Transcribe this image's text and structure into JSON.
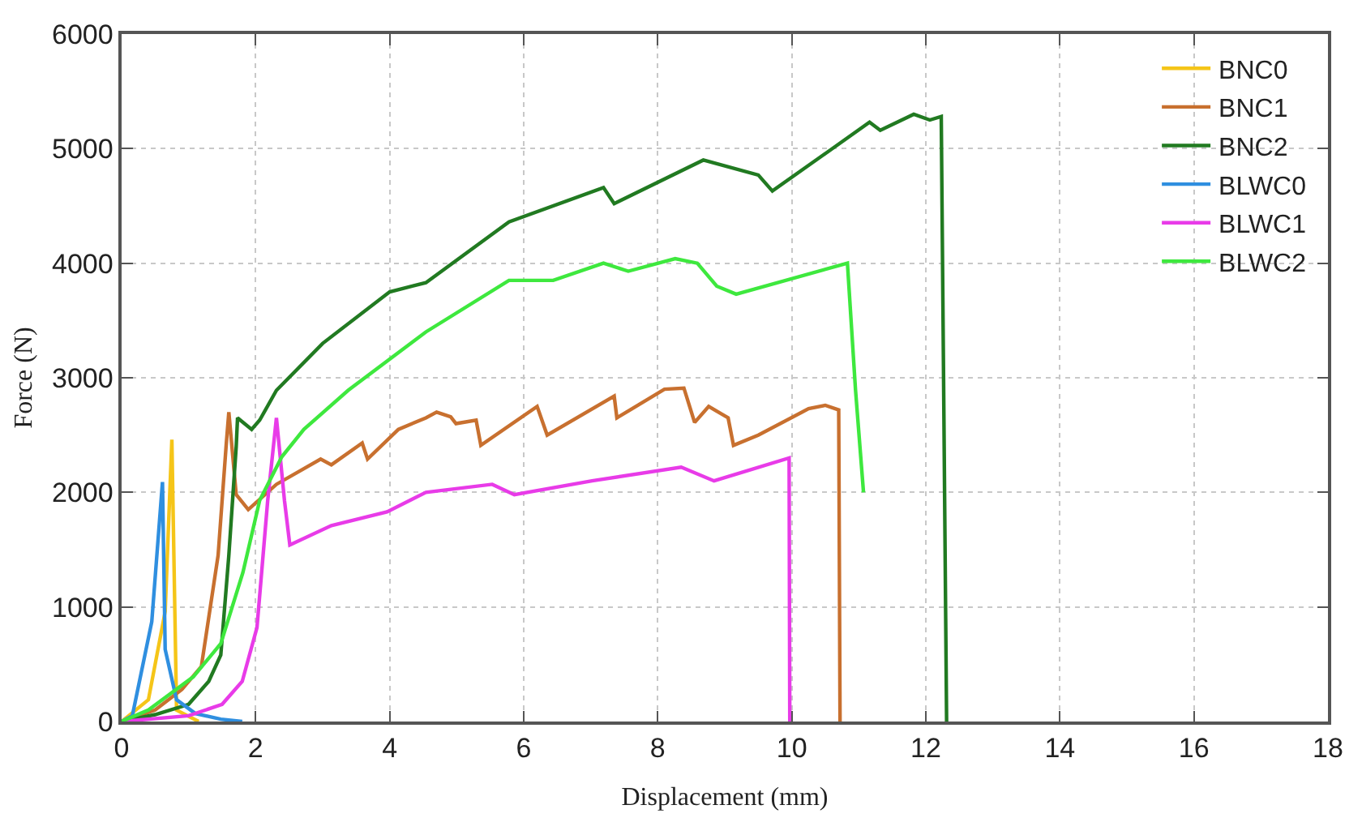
{
  "chart_data": {
    "type": "line",
    "xlabel": "Displacement (mm)",
    "ylabel": "Force (N)",
    "xlim": [
      0,
      18
    ],
    "xticks": [
      0,
      2,
      4,
      6,
      8,
      10,
      12,
      14,
      16,
      18
    ],
    "ylim": [
      0,
      6000
    ],
    "yticks": [
      0,
      1000,
      2000,
      3000,
      4000,
      5000,
      6000
    ],
    "grid": true,
    "legend": "top right",
    "marker": "none",
    "line_style": "solid",
    "series": [
      {
        "name": "BNC0",
        "color": "#f5c518",
        "x": [
          0,
          0.4,
          0.65,
          0.75,
          0.82,
          1.15
        ],
        "values": [
          0,
          190,
          960,
          2460,
          100,
          0
        ]
      },
      {
        "name": "BNC1",
        "color": "#c8702f",
        "x": [
          0,
          0.5,
          0.9,
          1.19,
          1.44,
          1.56,
          1.6,
          1.71,
          1.89,
          2.31,
          2.97,
          3.13,
          3.59,
          3.67,
          4.13,
          4.54,
          4.7,
          4.91,
          4.99,
          5.29,
          5.36,
          6.2,
          6.35,
          7.35,
          7.39,
          8.1,
          8.39,
          8.55,
          8.76,
          9.05,
          9.13,
          9.5,
          10.25,
          10.5,
          10.7,
          10.72
        ],
        "values": [
          0,
          100,
          280,
          480,
          1450,
          2410,
          2700,
          1980,
          1850,
          2070,
          2290,
          2240,
          2430,
          2290,
          2550,
          2650,
          2700,
          2660,
          2600,
          2630,
          2410,
          2750,
          2500,
          2840,
          2650,
          2900,
          2910,
          2610,
          2750,
          2650,
          2410,
          2500,
          2730,
          2760,
          2720,
          0
        ]
      },
      {
        "name": "BNC2",
        "color": "#217a21",
        "x": [
          0,
          0.5,
          1.0,
          1.3,
          1.48,
          1.6,
          1.71,
          1.73,
          1.94,
          2.06,
          2.31,
          3.0,
          4.0,
          4.54,
          5.78,
          7.19,
          7.35,
          8.68,
          9.5,
          9.71,
          11.16,
          11.32,
          11.82,
          12.06,
          12.23,
          12.31
        ],
        "values": [
          0,
          60,
          150,
          350,
          580,
          1450,
          2400,
          2650,
          2550,
          2630,
          2890,
          3300,
          3750,
          3830,
          4360,
          4660,
          4520,
          4900,
          4770,
          4630,
          5230,
          5160,
          5300,
          5250,
          5280,
          0
        ]
      },
      {
        "name": "BLWC0",
        "color": "#2f8fe0",
        "x": [
          0,
          0.16,
          0.45,
          0.61,
          0.65,
          0.82,
          1.1,
          1.48,
          1.8
        ],
        "values": [
          0,
          50,
          870,
          2090,
          630,
          190,
          70,
          20,
          0
        ]
      },
      {
        "name": "BLWC1",
        "color": "#e83be8",
        "x": [
          0,
          1.0,
          1.5,
          1.8,
          2.02,
          2.18,
          2.31,
          2.43,
          2.51,
          3.13,
          3.96,
          4.54,
          5.53,
          5.86,
          7.02,
          8.35,
          8.84,
          9.96,
          9.97
        ],
        "values": [
          0,
          50,
          150,
          350,
          820,
          1930,
          2650,
          1930,
          1540,
          1710,
          1830,
          2000,
          2070,
          1980,
          2100,
          2220,
          2100,
          2300,
          0
        ]
      },
      {
        "name": "BLWC2",
        "color": "#3ee83e",
        "x": [
          0,
          0.4,
          1.07,
          1.48,
          1.81,
          2.06,
          2.39,
          2.72,
          3.38,
          4.54,
          5.78,
          6.44,
          7.19,
          7.56,
          8.26,
          8.59,
          8.88,
          9.17,
          10.83,
          10.95,
          11.07
        ],
        "values": [
          0,
          100,
          390,
          680,
          1300,
          1930,
          2310,
          2550,
          2890,
          3400,
          3850,
          3850,
          4000,
          3930,
          4040,
          4000,
          3800,
          3730,
          4000,
          2900,
          2000
        ]
      }
    ]
  }
}
